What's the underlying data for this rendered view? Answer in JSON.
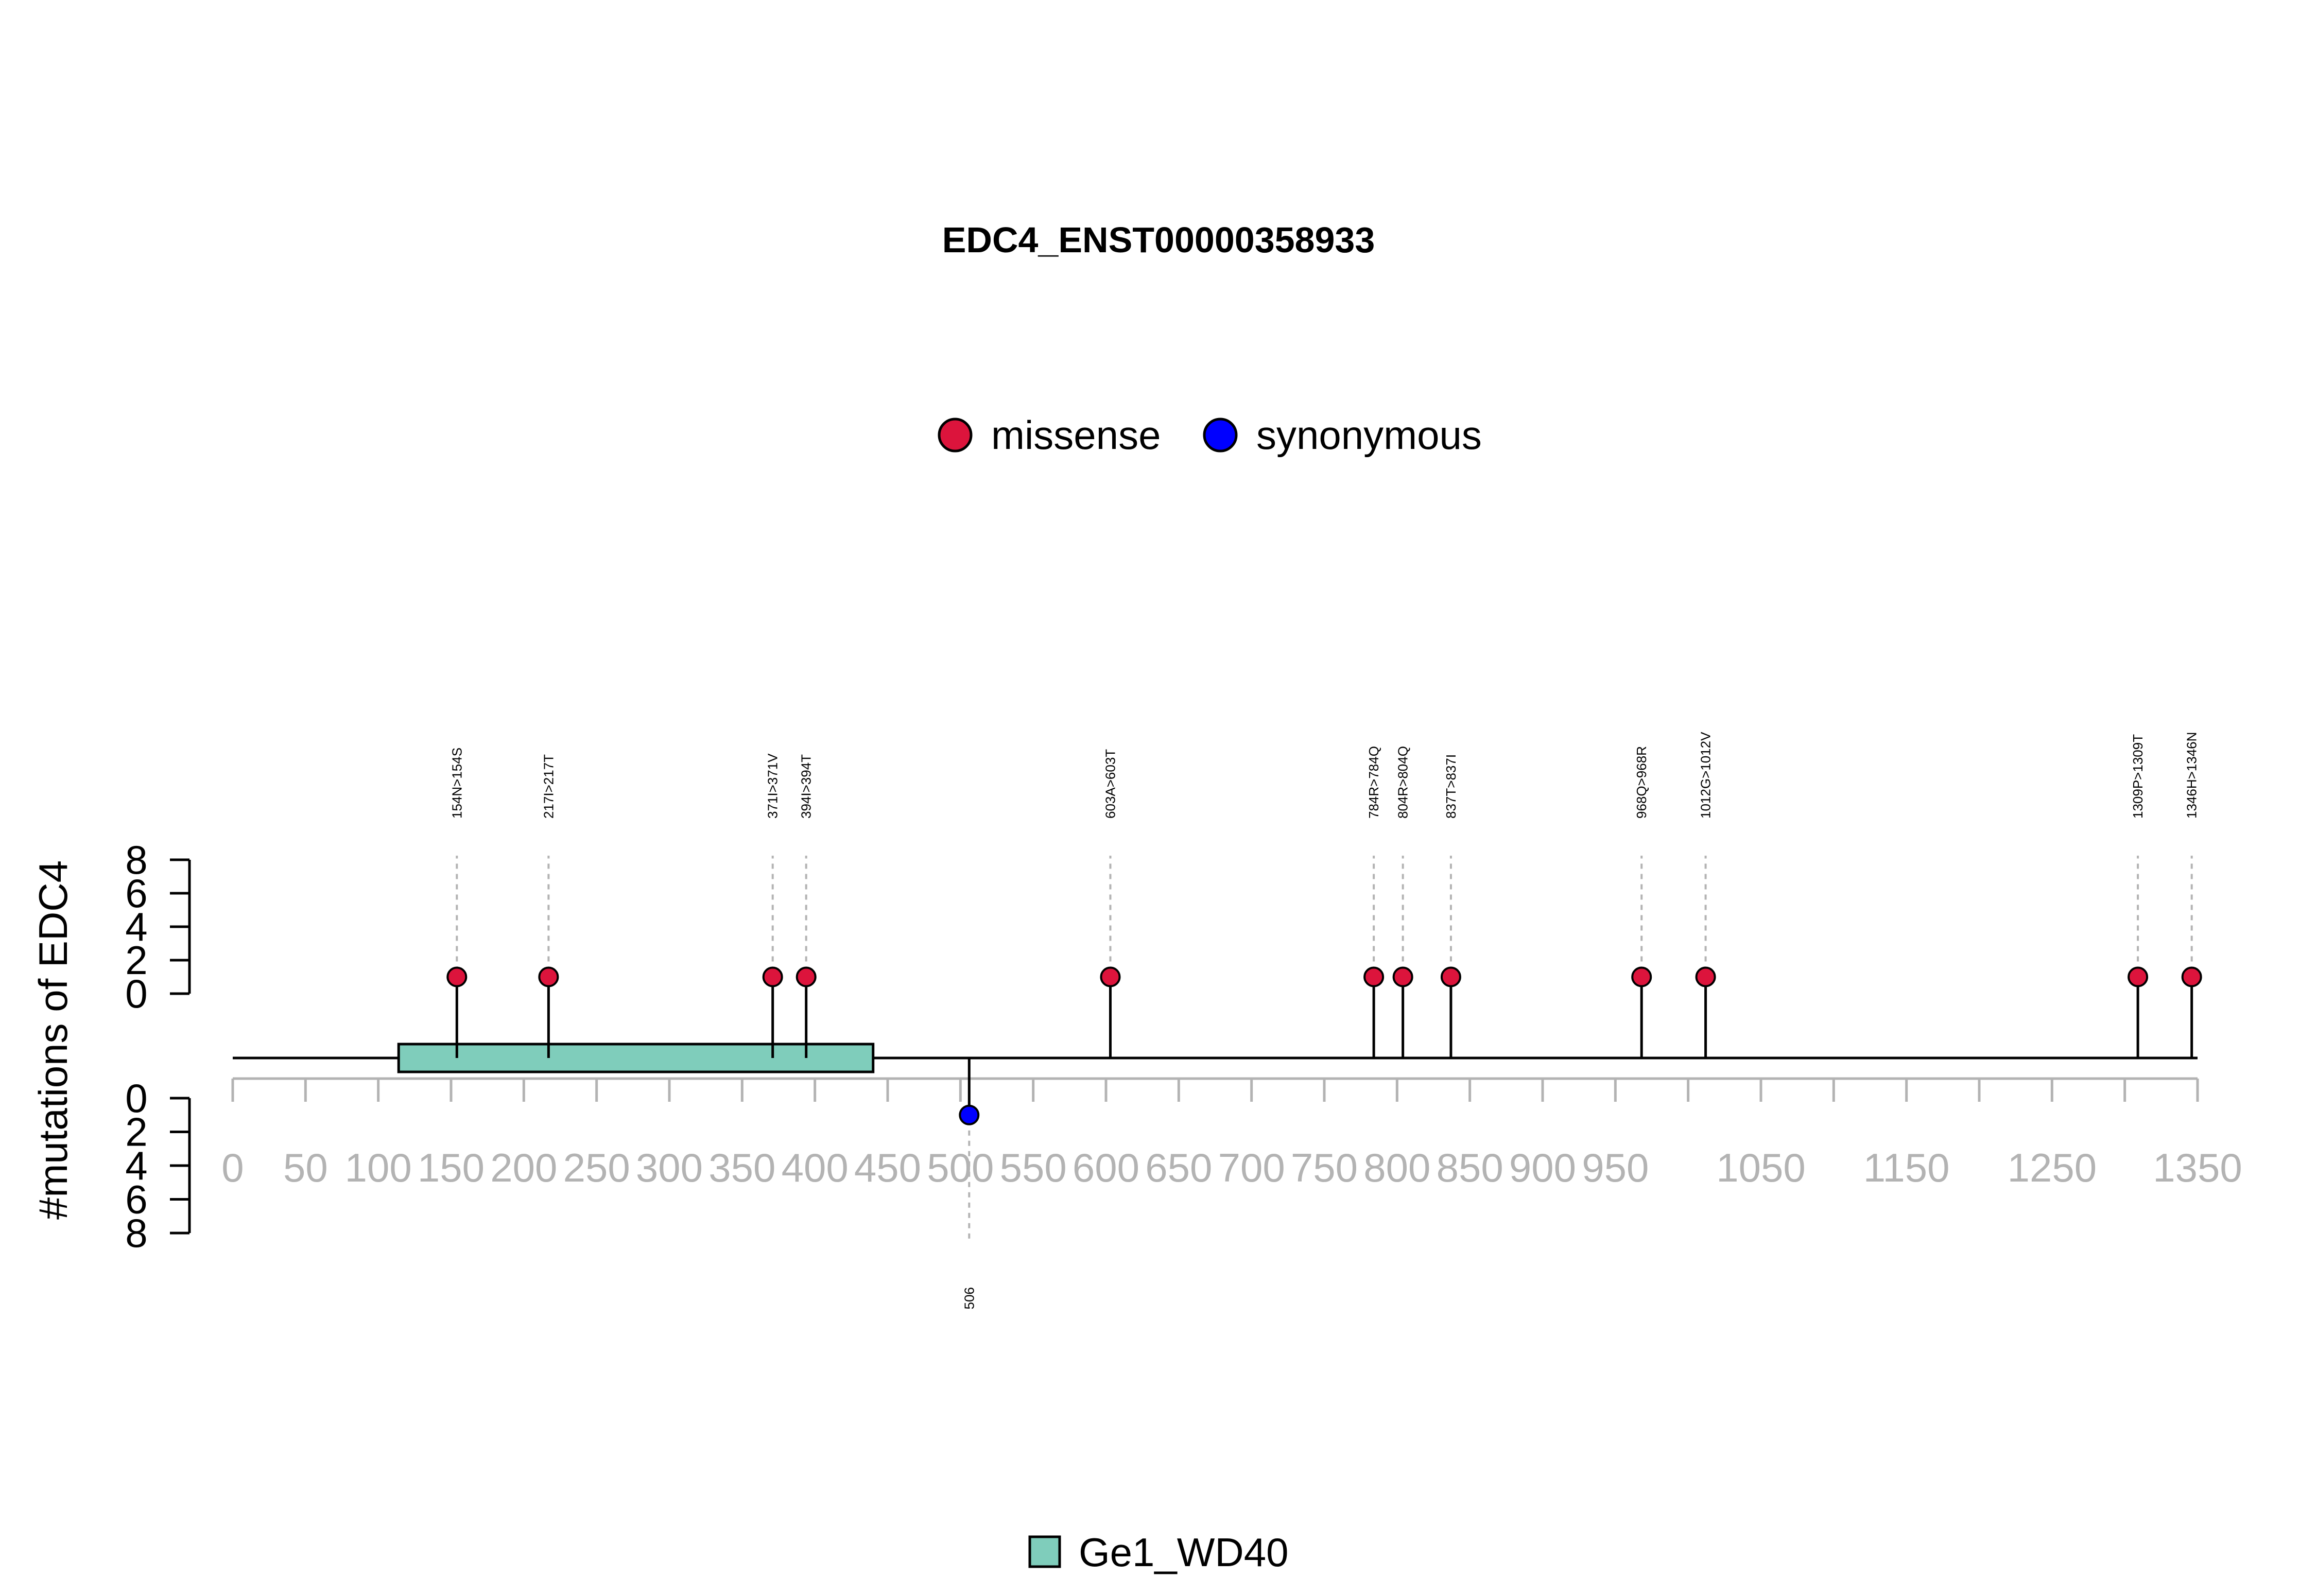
{
  "chart_data": {
    "type": "lollipop",
    "title": "EDC4_ENST00000358933",
    "ylabel": "#mutations of EDC4",
    "protein_length": 1350,
    "xlim": [
      0,
      1350
    ],
    "x_ticks": [
      0,
      50,
      100,
      150,
      200,
      250,
      300,
      350,
      400,
      450,
      500,
      550,
      600,
      650,
      700,
      750,
      800,
      850,
      900,
      950,
      1000,
      1050,
      1100,
      1150,
      1200,
      1250,
      1300,
      1350
    ],
    "x_tick_labels": [
      {
        "x": 0,
        "label": "0"
      },
      {
        "x": 50,
        "label": "50"
      },
      {
        "x": 100,
        "label": "100"
      },
      {
        "x": 150,
        "label": "150"
      },
      {
        "x": 200,
        "label": "200"
      },
      {
        "x": 250,
        "label": "250"
      },
      {
        "x": 300,
        "label": "300"
      },
      {
        "x": 350,
        "label": "350"
      },
      {
        "x": 400,
        "label": "400"
      },
      {
        "x": 450,
        "label": "450"
      },
      {
        "x": 500,
        "label": "500"
      },
      {
        "x": 550,
        "label": "550"
      },
      {
        "x": 600,
        "label": "600"
      },
      {
        "x": 650,
        "label": "650"
      },
      {
        "x": 700,
        "label": "700"
      },
      {
        "x": 750,
        "label": "750"
      },
      {
        "x": 800,
        "label": "800"
      },
      {
        "x": 850,
        "label": "850"
      },
      {
        "x": 900,
        "label": "900"
      },
      {
        "x": 950,
        "label": "950"
      },
      {
        "x": 1050,
        "label": "1050"
      },
      {
        "x": 1150,
        "label": "1150"
      },
      {
        "x": 1250,
        "label": "1250"
      },
      {
        "x": 1350,
        "label": "1350"
      }
    ],
    "y_ticks": [
      0,
      2,
      4,
      6,
      8
    ],
    "ylim": [
      0,
      8
    ],
    "legend": {
      "placement": "top-center",
      "items": [
        {
          "label": "missense",
          "color": "#dc143c"
        },
        {
          "label": "synonymous",
          "color": "#0000ff"
        }
      ]
    },
    "domain_legend": {
      "placement": "bottom-center",
      "items": [
        {
          "label": "Ge1_WD40",
          "color": "#7fcdbb"
        }
      ]
    },
    "domains": [
      {
        "name": "Ge1_WD40",
        "start": 114,
        "end": 440,
        "color": "#7fcdbb"
      }
    ],
    "series": [
      {
        "name": "missense",
        "color": "#dc143c",
        "side": "top",
        "points": [
          {
            "x": 154,
            "count": 1,
            "label": "154N>154S"
          },
          {
            "x": 217,
            "count": 1,
            "label": "217I>217T"
          },
          {
            "x": 371,
            "count": 1,
            "label": "371I>371V"
          },
          {
            "x": 394,
            "count": 1,
            "label": "394I>394T"
          },
          {
            "x": 603,
            "count": 1,
            "label": "603A>603T"
          },
          {
            "x": 784,
            "count": 1,
            "label": "784R>784Q"
          },
          {
            "x": 804,
            "count": 1,
            "label": "804R>804Q"
          },
          {
            "x": 837,
            "count": 1,
            "label": "837T>837I"
          },
          {
            "x": 968,
            "count": 1,
            "label": "968Q>968R"
          },
          {
            "x": 1012,
            "count": 1,
            "label": "1012G>1012V"
          },
          {
            "x": 1309,
            "count": 1,
            "label": "1309P>1309T"
          },
          {
            "x": 1346,
            "count": 1,
            "label": "1346H>1346N"
          }
        ]
      },
      {
        "name": "synonymous",
        "color": "#0000ff",
        "side": "bottom",
        "points": [
          {
            "x": 506,
            "count": 1,
            "label": "506"
          }
        ]
      }
    ]
  }
}
